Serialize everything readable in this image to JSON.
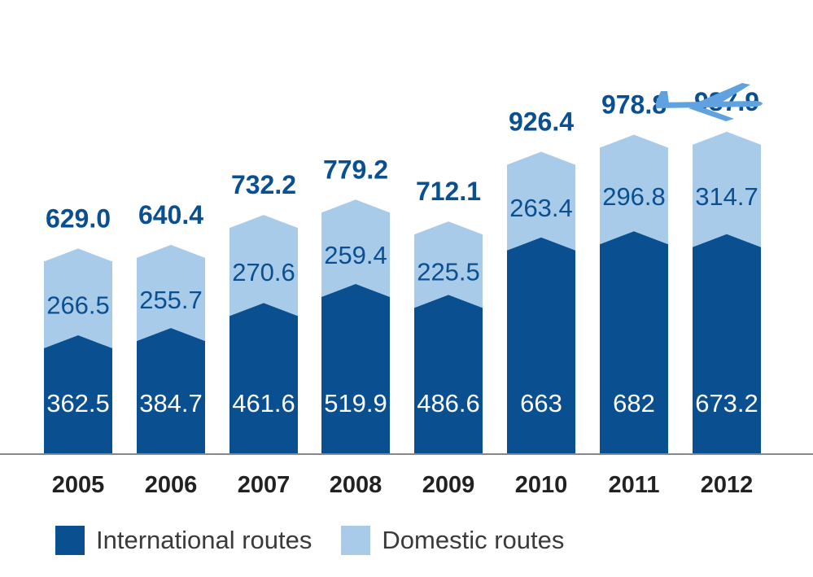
{
  "colors": {
    "international": "#0a4f8f",
    "domestic": "#a9cbea",
    "value_text": "#0a4f8f",
    "inner_text": "#ffffff",
    "domestic_text": "#0a4f8f",
    "axis": "#888888",
    "tick_text": "#222222",
    "plane": "#5fa2df"
  },
  "icons": {
    "plane": "airplane-icon"
  },
  "chart_data": {
    "type": "bar",
    "stacked": true,
    "categories": [
      "2005",
      "2006",
      "2007",
      "2008",
      "2009",
      "2010",
      "2011",
      "2012"
    ],
    "series": [
      {
        "name": "International routes",
        "values": [
          362.5,
          384.7,
          461.6,
          519.9,
          486.6,
          663,
          682,
          673.2
        ],
        "labels": [
          "362.5",
          "384.7",
          "461.6",
          "519.9",
          "486.6",
          "663",
          "682",
          "673.2"
        ]
      },
      {
        "name": "Domestic routes",
        "values": [
          266.5,
          255.7,
          270.6,
          259.4,
          225.5,
          263.4,
          296.8,
          314.7
        ],
        "labels": [
          "266.5",
          "255.7",
          "270.6",
          "259.4",
          "225.5",
          "263.4",
          "296.8",
          "314.7"
        ]
      }
    ],
    "totals": [
      "629.0",
      "640.4",
      "732.2",
      "779.2",
      "712.1",
      "926.4",
      "978.8",
      "987.9"
    ],
    "ylim": [
      0,
      1000
    ],
    "legend_position": "bottom-left"
  }
}
